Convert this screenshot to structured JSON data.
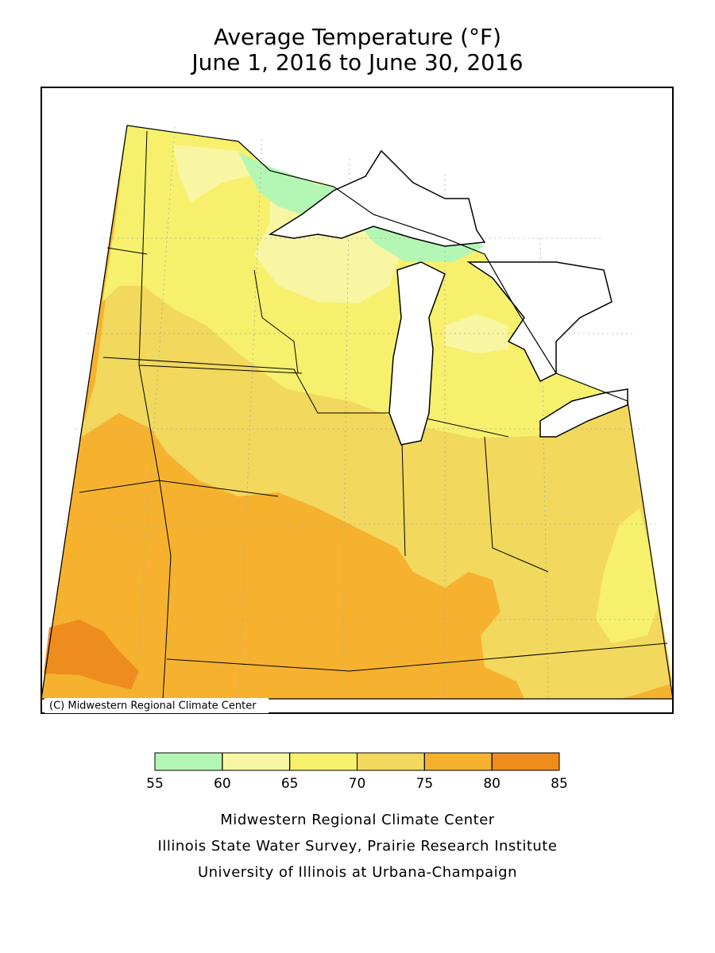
{
  "title": [
    "Average Temperature (°F)",
    "June 1, 2016 to June 30, 2016"
  ],
  "copyright": "(C) Midwestern Regional Climate Center",
  "legend": {
    "ticks": [
      55,
      60,
      65,
      70,
      75,
      80,
      85
    ],
    "colors": [
      "#b4f7b4",
      "#f8f6a2",
      "#f6f06c",
      "#f2d85c",
      "#f6b22e",
      "#ee8c1e"
    ]
  },
  "credits": [
    "Midwestern Regional Climate Center",
    "Illinois State Water Survey, Prairie Research Institute",
    "University of Illinois at Urbana-Champaign"
  ]
}
